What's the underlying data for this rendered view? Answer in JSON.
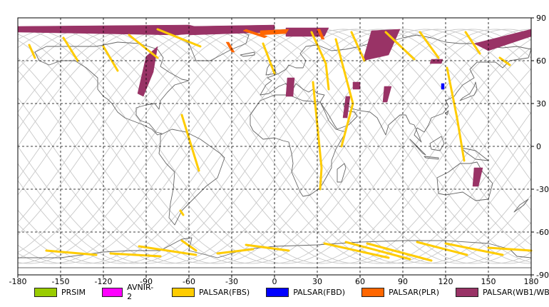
{
  "chart_data": {
    "type": "map",
    "projection": "equirectangular",
    "xlim": [
      -180,
      180
    ],
    "ylim": [
      -90,
      90
    ],
    "x_ticks": [
      "-180",
      "-150",
      "-120",
      "-90",
      "-60",
      "-30",
      "0",
      "30",
      "60",
      "90",
      "120",
      "150",
      "180"
    ],
    "y_ticks": [
      "90",
      "60",
      "30",
      "0",
      "-30",
      "-60",
      "-90"
    ],
    "grid": true,
    "legend_placement": "bottom",
    "legend": [
      {
        "name": "PRSIM",
        "color": "#99cc00"
      },
      {
        "name": "AVNIR-2",
        "color": "#ff00ff"
      },
      {
        "name": "PALSAR(FBS)",
        "color": "#ffcc00"
      },
      {
        "name": "PALSAR(FBD)",
        "color": "#0000ff"
      },
      {
        "name": "PALSAR(PLR)",
        "color": "#ff6600"
      },
      {
        "name": "PALSAR(WB1/WB2)",
        "color": "#993366"
      }
    ],
    "observations": [
      {
        "sensor": "PALSAR(WB1/WB2)",
        "polygon": [
          [
            -180,
            84
          ],
          [
            -60,
            85
          ],
          [
            -40,
            80
          ],
          [
            -70,
            78
          ],
          [
            -180,
            80
          ]
        ]
      },
      {
        "sensor": "PALSAR(WB1/WB2)",
        "polygon": [
          [
            -60,
            84
          ],
          [
            0,
            85
          ],
          [
            0,
            80
          ],
          [
            -60,
            78
          ]
        ]
      },
      {
        "sensor": "PALSAR(WB1/WB2)",
        "polygon": [
          [
            -90,
            63
          ],
          [
            -82,
            70
          ],
          [
            -85,
            52
          ],
          [
            -92,
            35
          ],
          [
            -96,
            37
          ]
        ]
      },
      {
        "sensor": "PALSAR(WB1/WB2)",
        "polygon": [
          [
            8,
            83
          ],
          [
            38,
            83
          ],
          [
            35,
            77
          ],
          [
            8,
            77
          ]
        ]
      },
      {
        "sensor": "PALSAR(WB1/WB2)",
        "polygon": [
          [
            9,
            48
          ],
          [
            14,
            48
          ],
          [
            13,
            35
          ],
          [
            8,
            35
          ]
        ]
      },
      {
        "sensor": "PALSAR(WB1/WB2)",
        "polygon": [
          [
            50,
            35
          ],
          [
            53,
            35
          ],
          [
            51,
            20
          ],
          [
            48,
            20
          ]
        ]
      },
      {
        "sensor": "PALSAR(WB1/WB2)",
        "polygon": [
          [
            55,
            45
          ],
          [
            60,
            45
          ],
          [
            60,
            40
          ],
          [
            55,
            40
          ]
        ]
      },
      {
        "sensor": "PALSAR(WB1/WB2)",
        "polygon": [
          [
            68,
            81
          ],
          [
            88,
            82
          ],
          [
            80,
            64
          ],
          [
            62,
            60
          ]
        ]
      },
      {
        "sensor": "PALSAR(WB1/WB2)",
        "polygon": [
          [
            77,
            42
          ],
          [
            82,
            42
          ],
          [
            79,
            31
          ],
          [
            76,
            31
          ]
        ]
      },
      {
        "sensor": "PALSAR(WB1/WB2)",
        "polygon": [
          [
            110,
            61
          ],
          [
            118,
            61
          ],
          [
            117,
            58
          ],
          [
            109,
            58
          ]
        ]
      },
      {
        "sensor": "PALSAR(WB1/WB2)",
        "polygon": [
          [
            140,
            72
          ],
          [
            180,
            82
          ],
          [
            180,
            77
          ],
          [
            150,
            67
          ]
        ]
      },
      {
        "sensor": "PALSAR(WB1/WB2)",
        "polygon": [
          [
            140,
            -15
          ],
          [
            146,
            -15
          ],
          [
            143,
            -28
          ],
          [
            139,
            -28
          ]
        ]
      },
      {
        "sensor": "PALSAR(FBD)",
        "polygon": [
          [
            117,
            44
          ],
          [
            119,
            44
          ],
          [
            119,
            40
          ],
          [
            117,
            40
          ]
        ]
      },
      {
        "sensor": "PALSAR(PLR)",
        "polygon": [
          [
            -10,
            81
          ],
          [
            10,
            82
          ],
          [
            8,
            79
          ],
          [
            -10,
            78
          ]
        ]
      },
      {
        "sensor": "PALSAR(PLR)",
        "polygon": [
          [
            -20,
            82
          ],
          [
            -5,
            77
          ],
          [
            -7,
            76
          ],
          [
            -22,
            81
          ]
        ]
      },
      {
        "sensor": "PALSAR(PLR)",
        "polygon": [
          [
            30,
            82
          ],
          [
            32,
            82
          ],
          [
            35,
            75
          ],
          [
            33,
            75
          ]
        ]
      },
      {
        "sensor": "PALSAR(PLR)",
        "polygon": [
          [
            -34,
            73
          ],
          [
            -32,
            73
          ],
          [
            -28,
            66
          ],
          [
            -30,
            66
          ]
        ]
      },
      {
        "sensor": "PALSAR(FBS)",
        "polyline": [
          [
            -172,
            71
          ],
          [
            -168,
            62
          ]
        ]
      },
      {
        "sensor": "PALSAR(FBS)",
        "polyline": [
          [
            -148,
            76
          ],
          [
            -138,
            60
          ]
        ]
      },
      {
        "sensor": "PALSAR(FBS)",
        "polyline": [
          [
            -120,
            70
          ],
          [
            -110,
            53
          ]
        ]
      },
      {
        "sensor": "PALSAR(FBS)",
        "polyline": [
          [
            -102,
            78
          ],
          [
            -82,
            62
          ]
        ]
      },
      {
        "sensor": "PALSAR(FBS)",
        "polyline": [
          [
            -82,
            82
          ],
          [
            -52,
            70
          ]
        ]
      },
      {
        "sensor": "PALSAR(FBS)",
        "polyline": [
          [
            -65,
            22
          ],
          [
            -53,
            -17
          ]
        ]
      },
      {
        "sensor": "PALSAR(FBS)",
        "polyline": [
          [
            -66,
            -45
          ],
          [
            -64,
            -48
          ]
        ]
      },
      {
        "sensor": "PALSAR(FBS)",
        "polyline": [
          [
            -8,
            72
          ],
          [
            0,
            51
          ]
        ]
      },
      {
        "sensor": "PALSAR(FBS)",
        "polyline": [
          [
            26,
            80
          ],
          [
            36,
            58
          ],
          [
            38,
            40
          ]
        ]
      },
      {
        "sensor": "PALSAR(FBS)",
        "polyline": [
          [
            27,
            45
          ],
          [
            33,
            -15
          ],
          [
            32,
            -30
          ]
        ]
      },
      {
        "sensor": "PALSAR(FBS)",
        "polyline": [
          [
            43,
            75
          ],
          [
            55,
            30
          ],
          [
            47,
            0
          ]
        ]
      },
      {
        "sensor": "PALSAR(FBS)",
        "polyline": [
          [
            54,
            80
          ],
          [
            63,
            60
          ]
        ]
      },
      {
        "sensor": "PALSAR(FBS)",
        "polyline": [
          [
            78,
            80
          ],
          [
            98,
            61
          ]
        ]
      },
      {
        "sensor": "PALSAR(FBS)",
        "polyline": [
          [
            102,
            80
          ],
          [
            115,
            62
          ]
        ]
      },
      {
        "sensor": "PALSAR(FBS)",
        "polyline": [
          [
            121,
            55
          ],
          [
            128,
            20
          ],
          [
            133,
            -10
          ]
        ]
      },
      {
        "sensor": "PALSAR(FBS)",
        "polyline": [
          [
            134,
            80
          ],
          [
            144,
            65
          ]
        ]
      },
      {
        "sensor": "PALSAR(FBS)",
        "polyline": [
          [
            158,
            62
          ],
          [
            165,
            57
          ]
        ]
      },
      {
        "sensor": "PALSAR(FBS)",
        "polyline": [
          [
            -160,
            -73
          ],
          [
            -125,
            -76
          ]
        ]
      },
      {
        "sensor": "PALSAR(FBS)",
        "polyline": [
          [
            -115,
            -75
          ],
          [
            -80,
            -77
          ]
        ]
      },
      {
        "sensor": "PALSAR(FBS)",
        "polyline": [
          [
            -95,
            -70
          ],
          [
            -55,
            -76
          ]
        ]
      },
      {
        "sensor": "PALSAR(FBS)",
        "polyline": [
          [
            -65,
            -66
          ],
          [
            -55,
            -73
          ]
        ]
      },
      {
        "sensor": "PALSAR(FBS)",
        "polyline": [
          [
            -40,
            -75
          ],
          [
            -15,
            -72
          ]
        ]
      },
      {
        "sensor": "PALSAR(FBS)",
        "polyline": [
          [
            -20,
            -69
          ],
          [
            10,
            -73
          ]
        ]
      },
      {
        "sensor": "PALSAR(FBS)",
        "polyline": [
          [
            35,
            -68
          ],
          [
            80,
            -78
          ]
        ]
      },
      {
        "sensor": "PALSAR(FBS)",
        "polyline": [
          [
            50,
            -67
          ],
          [
            95,
            -79
          ]
        ]
      },
      {
        "sensor": "PALSAR(FBS)",
        "polyline": [
          [
            65,
            -68
          ],
          [
            110,
            -80
          ]
        ]
      },
      {
        "sensor": "PALSAR(FBS)",
        "polyline": [
          [
            100,
            -67
          ],
          [
            135,
            -76
          ]
        ]
      },
      {
        "sensor": "PALSAR(FBS)",
        "polyline": [
          [
            120,
            -68
          ],
          [
            160,
            -76
          ]
        ]
      },
      {
        "sensor": "PALSAR(FBS)",
        "polyline": [
          [
            150,
            -71
          ],
          [
            180,
            -73
          ]
        ]
      }
    ]
  }
}
